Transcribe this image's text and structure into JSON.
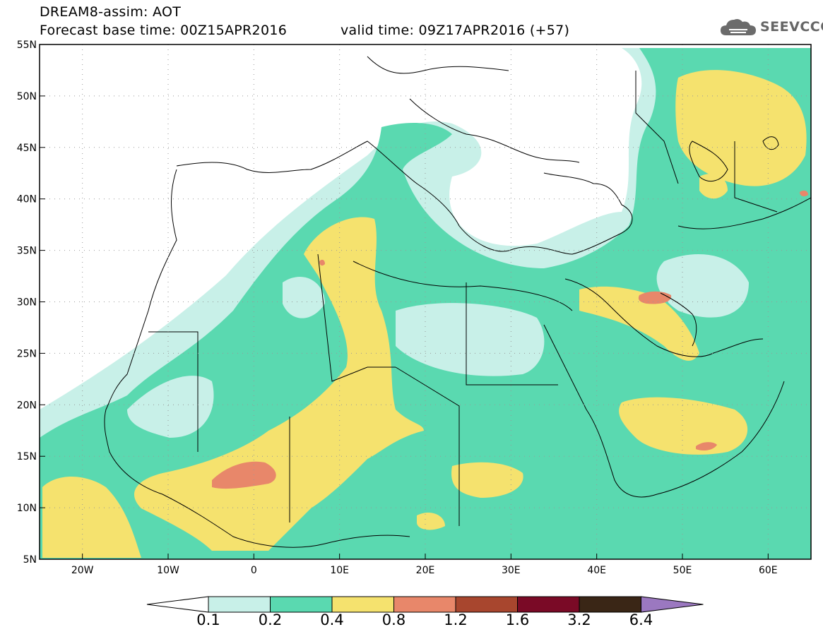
{
  "header": {
    "model_line": "DREAM8-assim: AOT",
    "base_time_line": "Forecast base time: 00Z15APR2016",
    "valid_time_line": "valid time: 09Z17APR2016 (+57)"
  },
  "logo": {
    "text": "SEEVCCC",
    "icon": "cloud-icon"
  },
  "map": {
    "lat_labels": [
      "55N",
      "50N",
      "45N",
      "40N",
      "35N",
      "30N",
      "25N",
      "20N",
      "15N",
      "10N",
      "5N"
    ],
    "lon_labels": [
      "20W",
      "10W",
      "0",
      "10E",
      "20E",
      "30E",
      "40E",
      "50E",
      "60E"
    ],
    "lat_range": [
      5,
      55
    ],
    "lon_range": [
      -25,
      65
    ],
    "grid": "dotted",
    "layer": "aerosol optical thickness (AOT) forecast field"
  },
  "colorbar": {
    "labels": [
      "0.1",
      "0.2",
      "0.4",
      "0.8",
      "1.2",
      "1.6",
      "3.2",
      "6.4"
    ],
    "colors": [
      "#c8f0e8",
      "#5ad9b0",
      "#f5e26e",
      "#e8876a",
      "#a8462e",
      "#7a0a26",
      "#3a2616",
      "#9b78c0"
    ],
    "extend": "both"
  }
}
